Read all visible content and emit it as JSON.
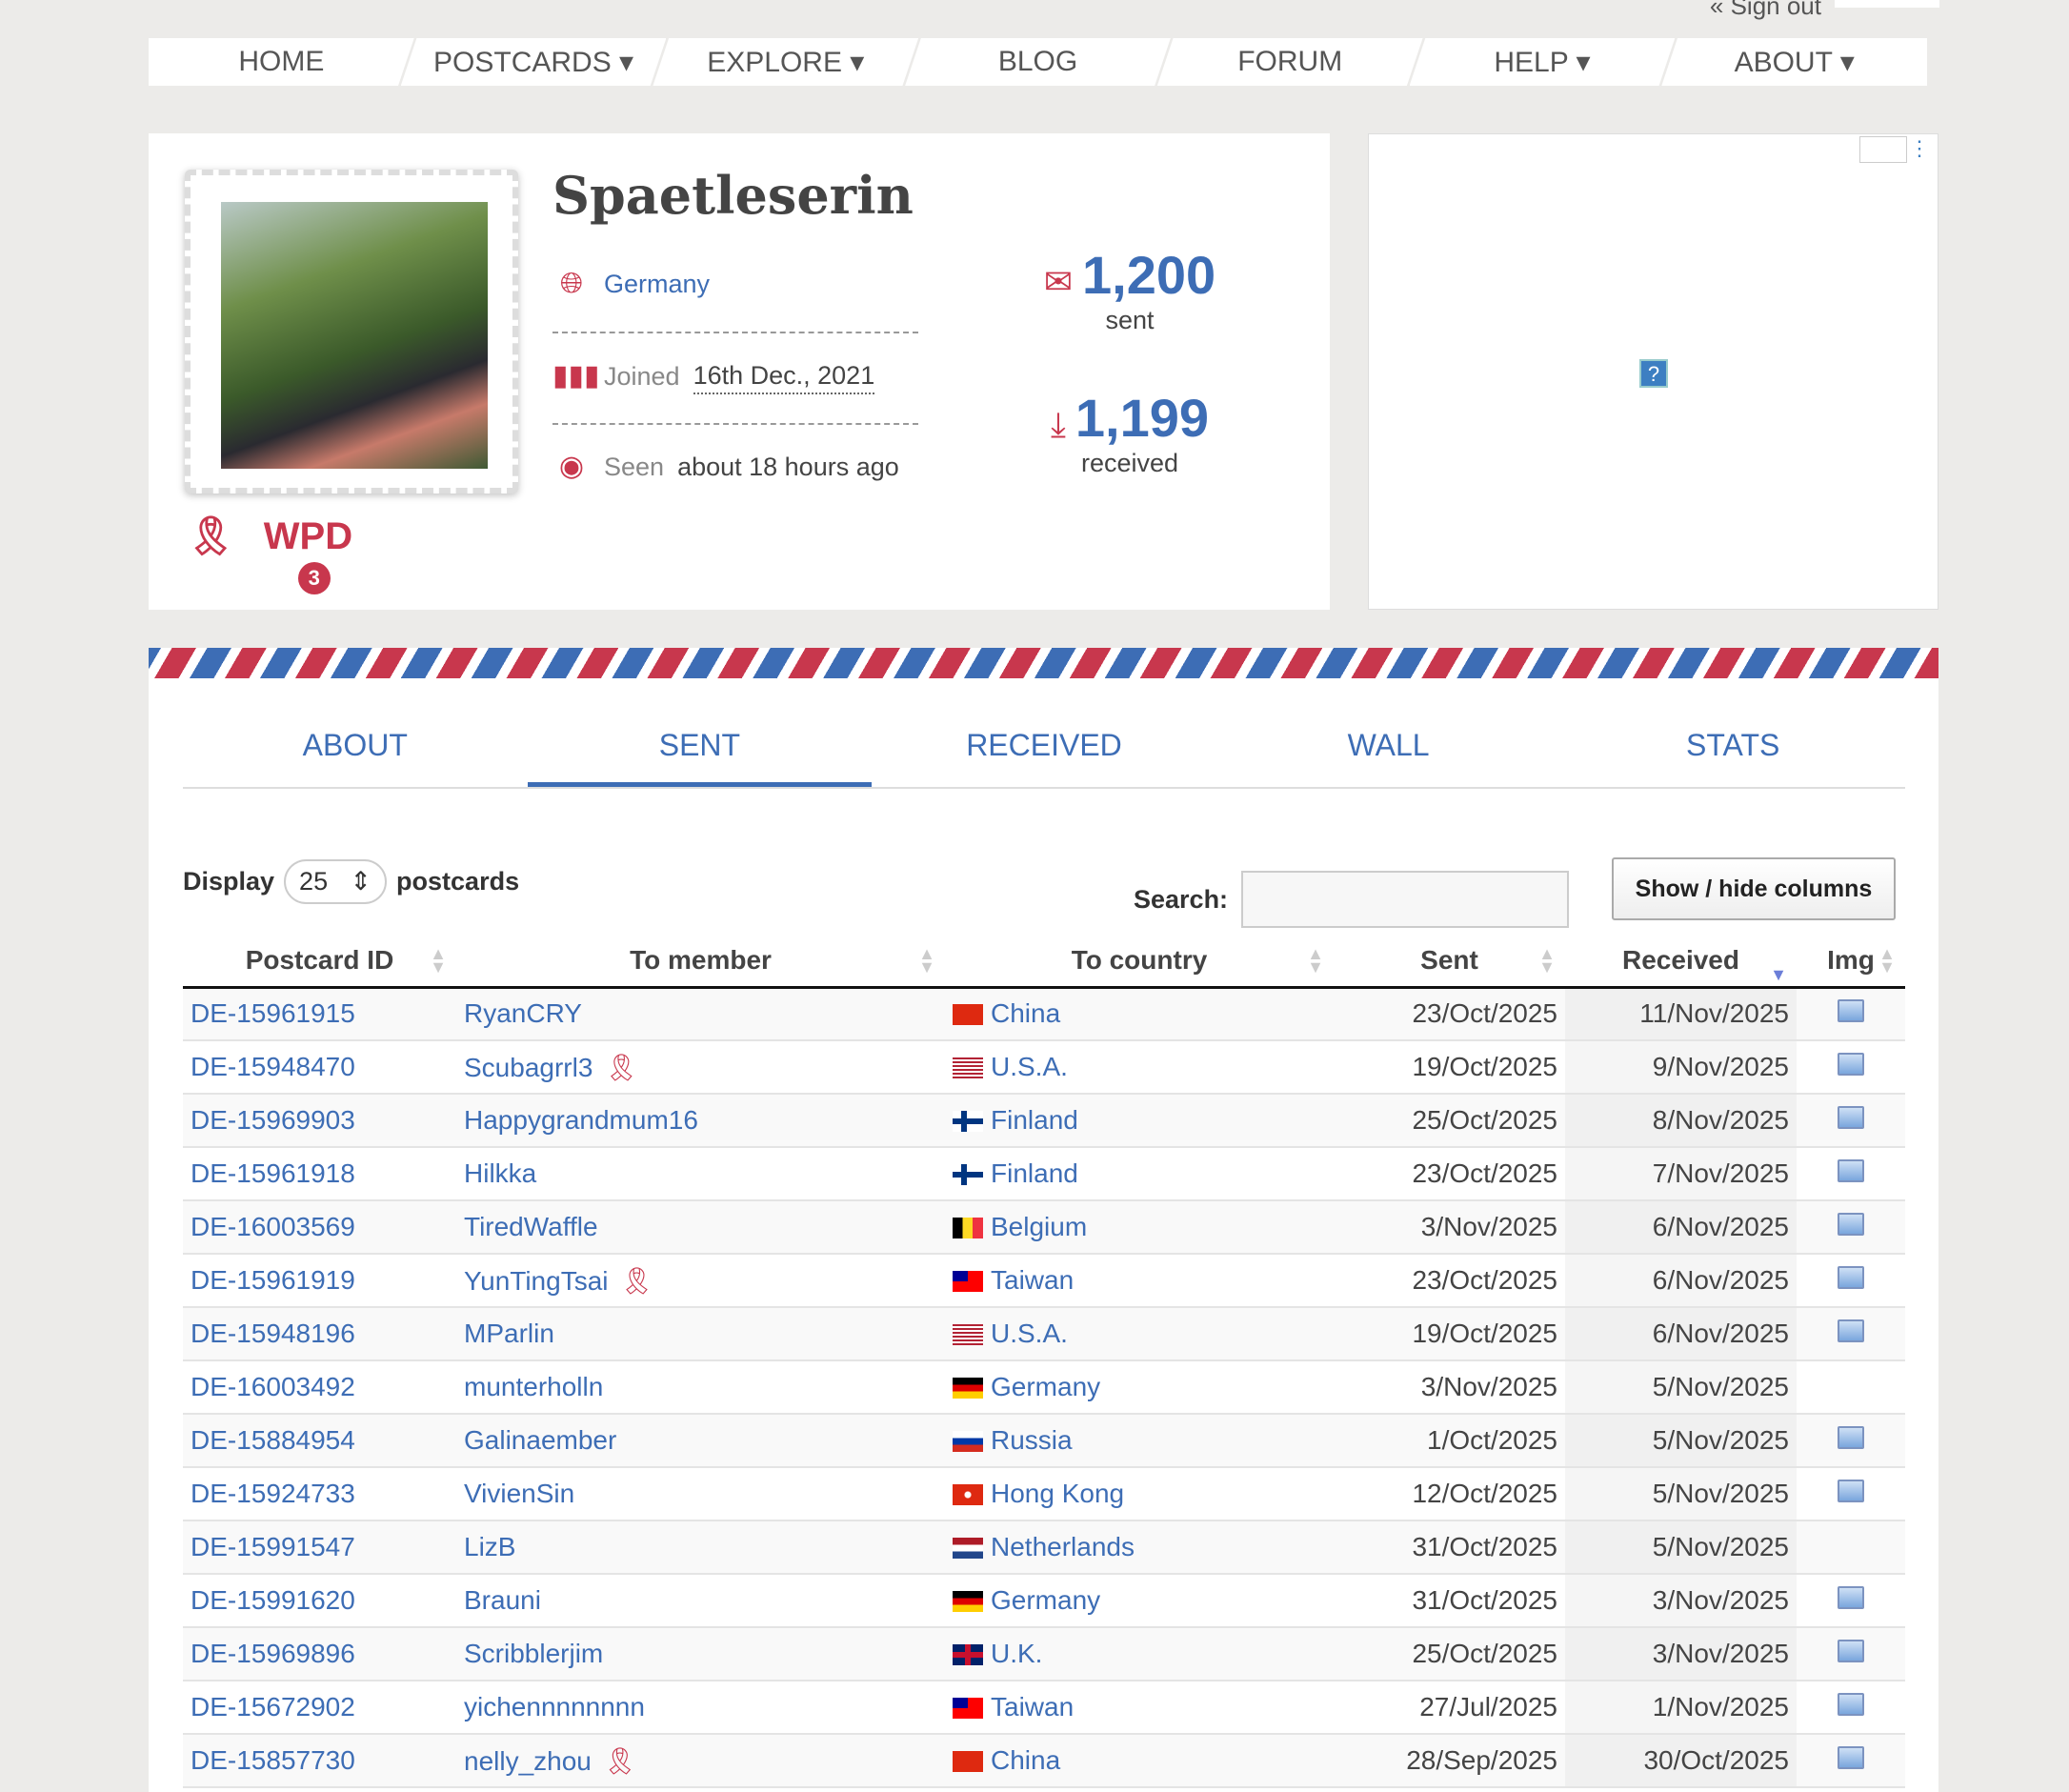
{
  "top": {
    "signout": "« Sign out"
  },
  "nav": [
    "HOME",
    "POSTCARDS ▾",
    "EXPLORE ▾",
    "BLOG",
    "FORUM",
    "HELP ▾",
    "ABOUT ▾"
  ],
  "profile": {
    "name": "Spaetleserin",
    "country": "Germany",
    "joined_label": "Joined",
    "joined_date": "16th Dec., 2021",
    "seen_label": "Seen",
    "seen_value": "about 18 hours ago",
    "sent_count": "1,200",
    "sent_label": "sent",
    "received_count": "1,199",
    "received_label": "received",
    "badge_wpd": "WPD",
    "badge_wpd_count": "3"
  },
  "ad": {
    "help_icon": "?"
  },
  "tabs": [
    {
      "label": "ABOUT"
    },
    {
      "label": "SENT",
      "active": true
    },
    {
      "label": "RECEIVED"
    },
    {
      "label": "WALL"
    },
    {
      "label": "STATS"
    }
  ],
  "controls": {
    "display_label": "Display",
    "display_value": "25",
    "display_suffix": "postcards",
    "search_label": "Search:",
    "search_value": "",
    "show_hide": "Show / hide columns"
  },
  "columns": [
    "Postcard ID",
    "To member",
    "To country",
    "Sent",
    "Received",
    "Img"
  ],
  "sort": {
    "column": "Received",
    "direction": "descending"
  },
  "rows": [
    {
      "id": "DE-15961915",
      "member": "RyanCRY",
      "country": "China",
      "flag": "cn",
      "sent": "23/Oct/2025",
      "received": "11/Nov/2025",
      "img": true
    },
    {
      "id": "DE-15948470",
      "member": "Scubagrrl3",
      "award": true,
      "country": "U.S.A.",
      "flag": "us",
      "sent": "19/Oct/2025",
      "received": "9/Nov/2025",
      "img": true
    },
    {
      "id": "DE-15969903",
      "member": "Happygrandmum16",
      "country": "Finland",
      "flag": "fi",
      "sent": "25/Oct/2025",
      "received": "8/Nov/2025",
      "img": true
    },
    {
      "id": "DE-15961918",
      "member": "Hilkka",
      "country": "Finland",
      "flag": "fi",
      "sent": "23/Oct/2025",
      "received": "7/Nov/2025",
      "img": true
    },
    {
      "id": "DE-16003569",
      "member": "TiredWaffle",
      "country": "Belgium",
      "flag": "be",
      "sent": "3/Nov/2025",
      "received": "6/Nov/2025",
      "img": true
    },
    {
      "id": "DE-15961919",
      "member": "YunTingTsai",
      "award": true,
      "country": "Taiwan",
      "flag": "tw",
      "sent": "23/Oct/2025",
      "received": "6/Nov/2025",
      "img": true
    },
    {
      "id": "DE-15948196",
      "member": "MParlin",
      "country": "U.S.A.",
      "flag": "us",
      "sent": "19/Oct/2025",
      "received": "6/Nov/2025",
      "img": true
    },
    {
      "id": "DE-16003492",
      "member": "munterholln",
      "country": "Germany",
      "flag": "de",
      "sent": "3/Nov/2025",
      "received": "5/Nov/2025",
      "img": false
    },
    {
      "id": "DE-15884954",
      "member": "Galinaember",
      "country": "Russia",
      "flag": "ru",
      "sent": "1/Oct/2025",
      "received": "5/Nov/2025",
      "img": true
    },
    {
      "id": "DE-15924733",
      "member": "VivienSin",
      "country": "Hong Kong",
      "flag": "hk",
      "sent": "12/Oct/2025",
      "received": "5/Nov/2025",
      "img": true
    },
    {
      "id": "DE-15991547",
      "member": "LizB",
      "country": "Netherlands",
      "flag": "nl",
      "sent": "31/Oct/2025",
      "received": "5/Nov/2025",
      "img": false
    },
    {
      "id": "DE-15991620",
      "member": "Brauni",
      "country": "Germany",
      "flag": "de",
      "sent": "31/Oct/2025",
      "received": "3/Nov/2025",
      "img": true
    },
    {
      "id": "DE-15969896",
      "member": "Scribblerjim",
      "country": "U.K.",
      "flag": "gb",
      "sent": "25/Oct/2025",
      "received": "3/Nov/2025",
      "img": true
    },
    {
      "id": "DE-15672902",
      "member": "yichennnnnnnn",
      "country": "Taiwan",
      "flag": "tw",
      "sent": "27/Jul/2025",
      "received": "1/Nov/2025",
      "img": true
    },
    {
      "id": "DE-15857730",
      "member": "nelly_zhou",
      "award": true,
      "country": "China",
      "flag": "cn",
      "sent": "28/Sep/2025",
      "received": "30/Oct/2025",
      "img": true
    }
  ],
  "colors": {
    "accent_blue": "#3d6db5",
    "accent_red": "#c8374d",
    "background": "#ecebe9"
  }
}
